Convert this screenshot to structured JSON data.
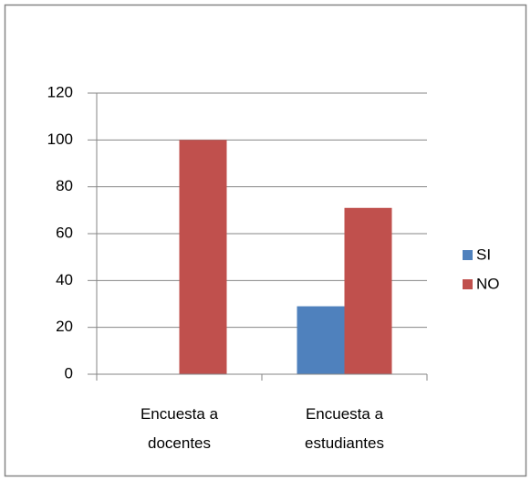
{
  "chart_data": {
    "type": "bar",
    "categories": [
      "Encuesta a docentes",
      "Encuesta a estudiantes"
    ],
    "series": [
      {
        "name": "SI",
        "color": "#4f81bd",
        "values": [
          0,
          29
        ]
      },
      {
        "name": "NO",
        "color": "#c0504d",
        "values": [
          100,
          71
        ]
      }
    ],
    "ylim": [
      0,
      120
    ],
    "yticks": [
      0,
      20,
      40,
      60,
      80,
      100,
      120
    ],
    "grid": true,
    "legend": "right"
  }
}
